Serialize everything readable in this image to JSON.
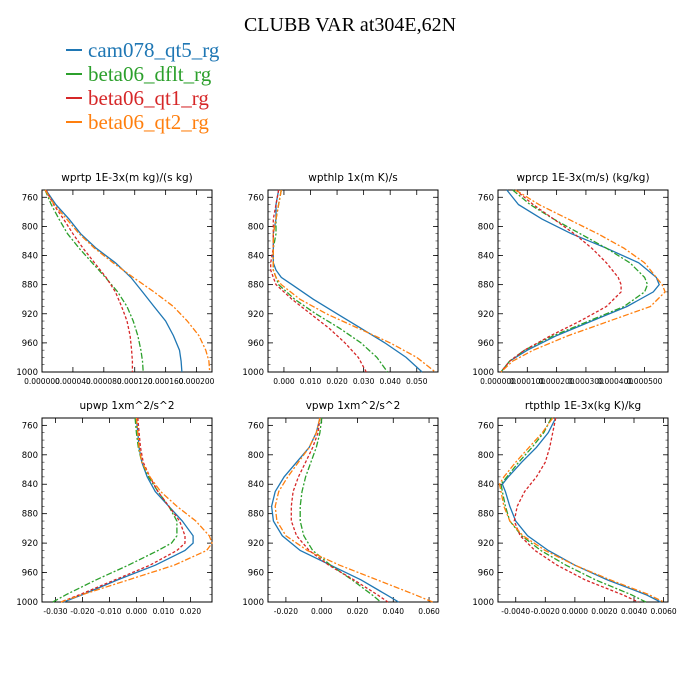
{
  "title": "CLUBB VAR at304E,62N",
  "legend": [
    {
      "name": "cam078_qt5_rg",
      "color": "#1f77b4"
    },
    {
      "name": "beta06_dflt_rg",
      "color": "#2ca02c"
    },
    {
      "name": "beta06_qt1_rg",
      "color": "#d62728"
    },
    {
      "name": "beta06_qt2_rg",
      "color": "#ff7f0e"
    }
  ],
  "chart_data": [
    {
      "type": "line",
      "title": "wprtp  1E-3x(m kg)/(s kg)",
      "xlim": [
        0,
        0.00022
      ],
      "ylim": [
        1000,
        750
      ],
      "yticks": [
        760,
        800,
        840,
        880,
        920,
        960,
        1000
      ],
      "xticks": [
        0,
        4e-05,
        8e-05,
        0.00012,
        0.00016,
        0.0002
      ],
      "xticklabels": [
        "0.000000",
        "0.000040",
        "0.000080",
        "0.000120",
        "0.000160",
        "0.000200"
      ],
      "y": [
        750,
        770,
        790,
        810,
        830,
        850,
        870,
        890,
        910,
        930,
        950,
        970,
        985,
        1000
      ],
      "series": [
        {
          "name": "cam078_qt5_rg",
          "values": [
            5e-06,
            1.8e-05,
            3.5e-05,
            5e-05,
            7e-05,
            9.5e-05,
            0.000115,
            0.00013,
            0.000145,
            0.00016,
            0.00017,
            0.000178,
            0.00018,
            0.000181
          ]
        },
        {
          "name": "beta06_dflt_rg",
          "values": [
            4e-06,
            1.2e-05,
            2.2e-05,
            3.3e-05,
            4.8e-05,
            6.5e-05,
            8.2e-05,
            9.8e-05,
            0.00011,
            0.000118,
            0.000124,
            0.000128,
            0.00013,
            0.000131
          ]
        },
        {
          "name": "beta06_qt1_rg",
          "values": [
            5e-06,
            1.5e-05,
            2.8e-05,
            4e-05,
            5.3e-05,
            6.8e-05,
            8.3e-05,
            9.5e-05,
            0.000103,
            0.00011,
            0.000114,
            0.000116,
            0.000117,
            0.000117
          ]
        },
        {
          "name": "beta06_qt2_rg",
          "values": [
            4e-06,
            1.6e-05,
            3.2e-05,
            4.8e-05,
            6.8e-05,
            9.2e-05,
            0.000118,
            0.000145,
            0.00017,
            0.000188,
            0.000203,
            0.000212,
            0.000216,
            0.000217
          ]
        }
      ]
    },
    {
      "type": "line",
      "title": "wpthlp  1x(m K)/s",
      "xlim": [
        -0.006,
        0.058
      ],
      "ylim": [
        1000,
        750
      ],
      "yticks": [
        760,
        800,
        840,
        880,
        920,
        960,
        1000
      ],
      "xticks": [
        0,
        0.01,
        0.02,
        0.03,
        0.04,
        0.05
      ],
      "xticklabels": [
        "0.000",
        "0.010",
        "0.020",
        "0.030",
        "0.040",
        "0.050"
      ],
      "y": [
        750,
        770,
        790,
        810,
        830,
        850,
        860,
        870,
        880,
        900,
        920,
        940,
        960,
        980,
        1000
      ],
      "series": [
        {
          "name": "cam078_qt5_rg",
          "values": [
            -0.002,
            -0.003,
            -0.003,
            -0.004,
            -0.004,
            -0.004,
            -0.003,
            -0.001,
            0.003,
            0.011,
            0.02,
            0.029,
            0.038,
            0.046,
            0.052
          ]
        },
        {
          "name": "beta06_dflt_rg",
          "values": [
            -0.001,
            -0.002,
            -0.003,
            -0.003,
            -0.004,
            -0.004,
            -0.004,
            -0.003,
            -0.002,
            0.004,
            0.012,
            0.021,
            0.029,
            0.035,
            0.039
          ]
        },
        {
          "name": "beta06_qt1_rg",
          "values": [
            -0.002,
            -0.003,
            -0.004,
            -0.004,
            -0.004,
            -0.005,
            -0.005,
            -0.004,
            -0.003,
            0.003,
            0.01,
            0.017,
            0.023,
            0.028,
            0.031
          ]
        },
        {
          "name": "beta06_qt2_rg",
          "values": [
            -0.001,
            -0.002,
            -0.003,
            -0.004,
            -0.004,
            -0.004,
            -0.004,
            -0.003,
            -0.001,
            0.006,
            0.016,
            0.028,
            0.04,
            0.05,
            0.057
          ]
        }
      ]
    },
    {
      "type": "line",
      "title": "wprcp  1E-3x(m/s) (kg/kg)",
      "xlim": [
        0,
        0.00058
      ],
      "ylim": [
        1000,
        750
      ],
      "yticks": [
        760,
        800,
        840,
        880,
        920,
        960,
        1000
      ],
      "xticks": [
        0,
        0.0001,
        0.0002,
        0.0003,
        0.0004,
        0.0005
      ],
      "xticklabels": [
        "0.000000",
        "0.000100",
        "0.000200",
        "0.000300",
        "0.000400",
        "0.000500"
      ],
      "y": [
        750,
        770,
        790,
        810,
        830,
        850,
        870,
        880,
        890,
        910,
        930,
        950,
        970,
        985,
        1000
      ],
      "series": [
        {
          "name": "cam078_qt5_rg",
          "values": [
            3e-05,
            7e-05,
            0.00015,
            0.00025,
            0.00037,
            0.00048,
            0.00054,
            0.00055,
            0.00053,
            0.00044,
            0.00032,
            0.0002,
            0.0001,
            4e-05,
            1e-05
          ]
        },
        {
          "name": "beta06_dflt_rg",
          "values": [
            5e-05,
            0.00011,
            0.00019,
            0.00028,
            0.00037,
            0.00045,
            0.0005,
            0.00051,
            0.0005,
            0.00043,
            0.00031,
            0.00019,
            9e-05,
            4e-05,
            1e-05
          ]
        },
        {
          "name": "beta06_qt1_rg",
          "values": [
            6e-05,
            0.00012,
            0.00019,
            0.00026,
            0.00032,
            0.00037,
            0.00041,
            0.00042,
            0.00042,
            0.00037,
            0.00028,
            0.00018,
            9e-05,
            4e-05,
            1e-05
          ]
        },
        {
          "name": "beta06_qt2_rg",
          "values": [
            6e-05,
            0.00014,
            0.00024,
            0.00034,
            0.00043,
            0.0005,
            0.00054,
            0.00056,
            0.00057,
            0.00052,
            0.00038,
            0.00024,
            0.00012,
            5e-05,
            1e-05
          ]
        }
      ]
    },
    {
      "type": "line",
      "title": "upwp  1xm^2/s^2",
      "xlim": [
        -0.035,
        0.028
      ],
      "ylim": [
        1000,
        750
      ],
      "yticks": [
        760,
        800,
        840,
        880,
        920,
        960,
        1000
      ],
      "xticks": [
        -0.03,
        -0.02,
        -0.01,
        0,
        0.01,
        0.02
      ],
      "xticklabels": [
        "-0.030",
        "-0.020",
        "-0.010",
        "0.000",
        "0.010",
        "0.020"
      ],
      "y": [
        750,
        770,
        790,
        810,
        830,
        850,
        870,
        890,
        910,
        920,
        930,
        950,
        970,
        990,
        1000
      ],
      "series": [
        {
          "name": "cam078_qt5_rg",
          "values": [
            0.0,
            0.0005,
            0.001,
            0.002,
            0.004,
            0.007,
            0.012,
            0.017,
            0.021,
            0.021,
            0.018,
            0.007,
            -0.007,
            -0.02,
            -0.027
          ]
        },
        {
          "name": "beta06_dflt_rg",
          "values": [
            -0.0005,
            0.0,
            0.0007,
            0.002,
            0.0045,
            0.008,
            0.012,
            0.015,
            0.015,
            0.013,
            0.008,
            -0.003,
            -0.015,
            -0.026,
            -0.031
          ]
        },
        {
          "name": "beta06_qt1_rg",
          "values": [
            0.0005,
            0.001,
            0.0015,
            0.0025,
            0.005,
            0.008,
            0.012,
            0.016,
            0.018,
            0.018,
            0.015,
            0.005,
            -0.008,
            -0.021,
            -0.028
          ]
        },
        {
          "name": "beta06_qt2_rg",
          "values": [
            0.0,
            0.0005,
            0.001,
            0.002,
            0.005,
            0.009,
            0.015,
            0.022,
            0.027,
            0.028,
            0.026,
            0.014,
            -0.003,
            -0.02,
            -0.028
          ]
        }
      ]
    },
    {
      "type": "line",
      "title": "vpwp  1xm^2/s^2",
      "xlim": [
        -0.03,
        0.065
      ],
      "ylim": [
        1000,
        750
      ],
      "yticks": [
        760,
        800,
        840,
        880,
        920,
        960,
        1000
      ],
      "xticks": [
        -0.02,
        0,
        0.02,
        0.04,
        0.06
      ],
      "xticklabels": [
        "-0.020",
        "0.000",
        "0.020",
        "0.040",
        "0.060"
      ],
      "y": [
        750,
        770,
        790,
        810,
        830,
        850,
        870,
        890,
        910,
        930,
        950,
        970,
        990,
        1000
      ],
      "series": [
        {
          "name": "cam078_qt5_rg",
          "values": [
            -0.001,
            -0.003,
            -0.007,
            -0.014,
            -0.021,
            -0.026,
            -0.028,
            -0.027,
            -0.022,
            -0.012,
            0.005,
            0.022,
            0.036,
            0.043
          ]
        },
        {
          "name": "beta06_dflt_rg",
          "values": [
            0.0,
            -0.001,
            -0.003,
            -0.006,
            -0.009,
            -0.011,
            -0.012,
            -0.012,
            -0.01,
            -0.005,
            0.005,
            0.017,
            0.028,
            0.033
          ]
        },
        {
          "name": "beta06_qt1_rg",
          "values": [
            -0.001,
            -0.002,
            -0.005,
            -0.009,
            -0.013,
            -0.016,
            -0.017,
            -0.017,
            -0.014,
            -0.007,
            0.004,
            0.018,
            0.031,
            0.037
          ]
        },
        {
          "name": "beta06_qt2_rg",
          "values": [
            -0.001,
            -0.003,
            -0.007,
            -0.013,
            -0.019,
            -0.024,
            -0.026,
            -0.025,
            -0.02,
            -0.008,
            0.01,
            0.031,
            0.052,
            0.062
          ]
        }
      ]
    },
    {
      "type": "line",
      "title": "rtpthlp  1E-3x(kg K)/kg",
      "xlim": [
        -0.0052,
        0.0063
      ],
      "ylim": [
        1000,
        750
      ],
      "yticks": [
        760,
        800,
        840,
        880,
        920,
        960,
        1000
      ],
      "xticks": [
        -0.004,
        -0.002,
        0,
        0.002,
        0.004,
        0.006
      ],
      "xticklabels": [
        "-0.0040",
        "-0.0020",
        "0.0000",
        "0.0020",
        "0.0040",
        "0.0060"
      ],
      "y": [
        750,
        770,
        790,
        810,
        830,
        840,
        850,
        870,
        890,
        910,
        930,
        950,
        970,
        990,
        1000
      ],
      "series": [
        {
          "name": "cam078_qt5_rg",
          "values": [
            -0.0013,
            -0.0018,
            -0.0026,
            -0.0036,
            -0.0045,
            -0.0049,
            -0.0047,
            -0.0044,
            -0.004,
            -0.0032,
            -0.0018,
            0.0,
            0.0022,
            0.0048,
            0.0058
          ]
        },
        {
          "name": "beta06_dflt_rg",
          "values": [
            -0.0016,
            -0.0021,
            -0.0029,
            -0.0038,
            -0.0046,
            -0.005,
            -0.0049,
            -0.0047,
            -0.0044,
            -0.0036,
            -0.0023,
            -0.0006,
            0.0014,
            0.0038,
            0.0048
          ]
        },
        {
          "name": "beta06_qt1_rg",
          "values": [
            -0.0013,
            -0.0015,
            -0.0017,
            -0.002,
            -0.0026,
            -0.003,
            -0.0034,
            -0.0039,
            -0.0041,
            -0.0037,
            -0.0027,
            -0.0012,
            0.0007,
            0.0032,
            0.0043
          ]
        },
        {
          "name": "beta06_qt2_rg",
          "values": [
            -0.0015,
            -0.0022,
            -0.0031,
            -0.004,
            -0.0048,
            -0.0051,
            -0.005,
            -0.0048,
            -0.0044,
            -0.0035,
            -0.002,
            0.0,
            0.0024,
            0.005,
            0.006
          ]
        }
      ]
    }
  ]
}
